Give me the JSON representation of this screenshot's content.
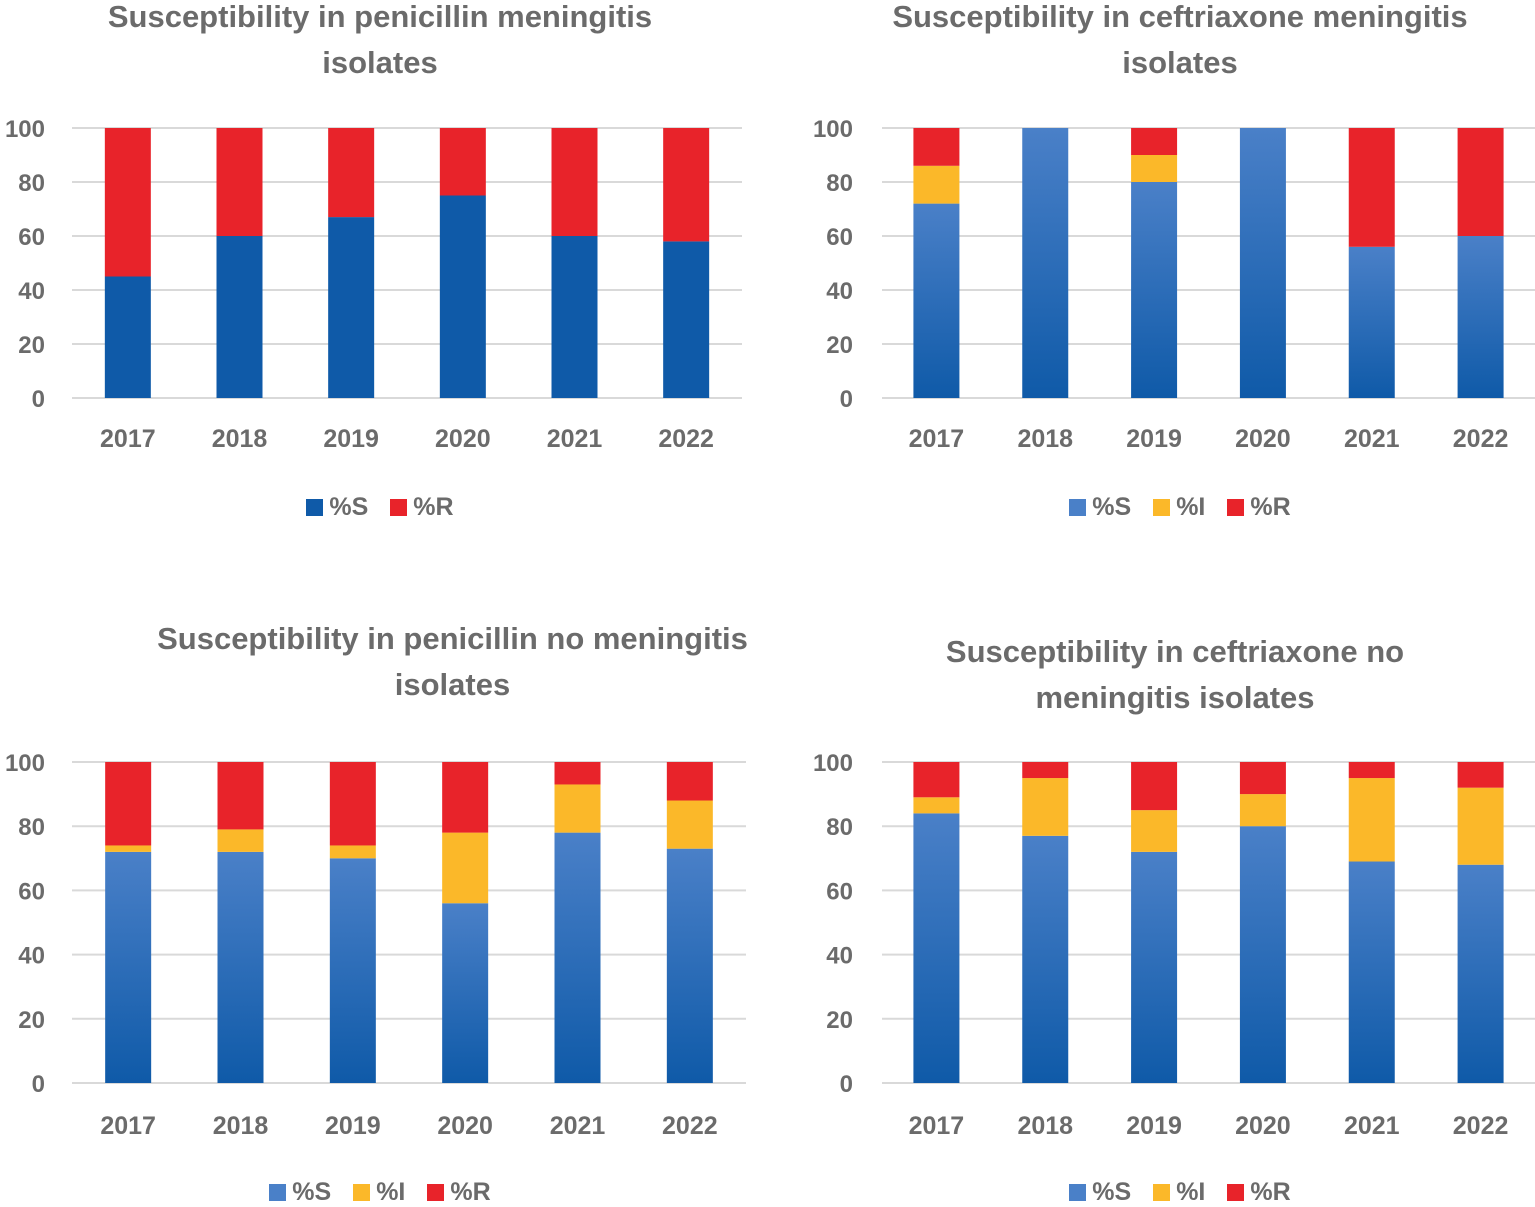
{
  "colors": {
    "S": "#0f5aa8",
    "S_light": "#4a80c8",
    "I": "#fbb829",
    "R": "#e8232a",
    "grid": "#d9d9d9",
    "text": "#6b6b6b"
  },
  "chart_data": [
    {
      "type": "bar",
      "stacked": true,
      "title": "Susceptibility in penicillin meningitis isolates",
      "title_lines": [
        "Susceptibility in penicillin meningitis",
        "isolates"
      ],
      "categories": [
        "2017",
        "2018",
        "2019",
        "2020",
        "2021",
        "2022"
      ],
      "series": [
        {
          "name": "%S",
          "key": "S",
          "values": [
            45,
            60,
            67,
            75,
            60,
            58
          ]
        },
        {
          "name": "%R",
          "key": "R",
          "values": [
            55,
            40,
            33,
            25,
            40,
            42
          ]
        }
      ],
      "yticks": [
        "0",
        "20",
        "40",
        "60",
        "80",
        "100"
      ],
      "ylim": [
        0,
        100
      ],
      "legend_position": "bottom",
      "gradient": false
    },
    {
      "type": "bar",
      "stacked": true,
      "title": "Susceptibility in ceftriaxone meningitis isolates",
      "title_lines": [
        "Susceptibility in ceftriaxone meningitis",
        "isolates"
      ],
      "categories": [
        "2017",
        "2018",
        "2019",
        "2020",
        "2021",
        "2022"
      ],
      "series": [
        {
          "name": "%S",
          "key": "S",
          "values": [
            72,
            100,
            80,
            100,
            56,
            60
          ]
        },
        {
          "name": "%I",
          "key": "I",
          "values": [
            14,
            0,
            10,
            0,
            0,
            0
          ]
        },
        {
          "name": "%R",
          "key": "R",
          "values": [
            14,
            0,
            10,
            0,
            44,
            40
          ]
        }
      ],
      "yticks": [
        "0",
        "20",
        "40",
        "60",
        "80",
        "100"
      ],
      "ylim": [
        0,
        100
      ],
      "legend_position": "bottom",
      "gradient": true
    },
    {
      "type": "bar",
      "stacked": true,
      "title": "Susceptibility in penicillin no meningitis isolates",
      "title_lines": [
        "Susceptibility in penicillin no meningitis",
        "isolates"
      ],
      "categories": [
        "2017",
        "2018",
        "2019",
        "2020",
        "2021",
        "2022"
      ],
      "series": [
        {
          "name": "%S",
          "key": "S",
          "values": [
            72,
            72,
            70,
            56,
            78,
            73
          ]
        },
        {
          "name": "%I",
          "key": "I",
          "values": [
            2,
            7,
            4,
            22,
            15,
            15
          ]
        },
        {
          "name": "%R",
          "key": "R",
          "values": [
            26,
            21,
            26,
            22,
            7,
            12
          ]
        }
      ],
      "yticks": [
        "0",
        "20",
        "40",
        "60",
        "80",
        "100"
      ],
      "ylim": [
        0,
        100
      ],
      "legend_position": "bottom",
      "gradient": true
    },
    {
      "type": "bar",
      "stacked": true,
      "title": "Susceptibility in ceftriaxone no meningitis isolates",
      "title_lines": [
        "Susceptibility in ceftriaxone no",
        "meningitis isolates"
      ],
      "categories": [
        "2017",
        "2018",
        "2019",
        "2020",
        "2021",
        "2022"
      ],
      "series": [
        {
          "name": "%S",
          "key": "S",
          "values": [
            84,
            77,
            72,
            80,
            69,
            68
          ]
        },
        {
          "name": "%I",
          "key": "I",
          "values": [
            5,
            18,
            13,
            10,
            26,
            24
          ]
        },
        {
          "name": "%R",
          "key": "R",
          "values": [
            11,
            5,
            15,
            10,
            5,
            8
          ]
        }
      ],
      "yticks": [
        "0",
        "20",
        "40",
        "60",
        "80",
        "100"
      ],
      "ylim": [
        0,
        100
      ],
      "legend_position": "bottom",
      "gradient": true
    }
  ]
}
